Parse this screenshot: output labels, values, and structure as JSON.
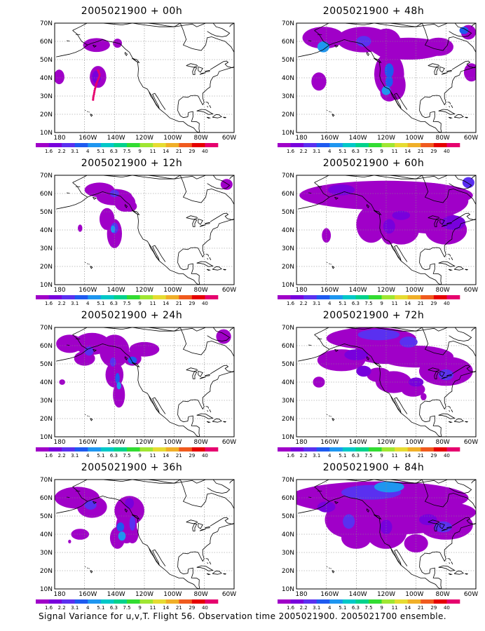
{
  "caption": "Signal Variance for u,v,T. Flight 56. Observation time 2005021900. 2005021700 ensemble.",
  "lat_labels": [
    "70N",
    "60N",
    "50N",
    "40N",
    "30N",
    "20N",
    "10N"
  ],
  "lon_labels": [
    "180",
    "160W",
    "140W",
    "120W",
    "100W",
    "80W",
    "60W"
  ],
  "colorbar": {
    "labels": [
      "1.6",
      "2.2",
      "3.1",
      "4",
      "5.1",
      "6.3",
      "7.5",
      "9",
      "11",
      "14",
      "21",
      "29",
      "40"
    ],
    "colors": [
      "#a000c8",
      "#7800dc",
      "#5a30f0",
      "#1e5af0",
      "#1e96f0",
      "#00c8c8",
      "#00d28c",
      "#32dc32",
      "#a0e632",
      "#e6dc32",
      "#f0af28",
      "#f05a1e",
      "#e60000",
      "#e6006e"
    ]
  },
  "panels": [
    {
      "title": "2005021900 + 00h"
    },
    {
      "title": "2005021900 + 48h"
    },
    {
      "title": "2005021900 + 12h"
    },
    {
      "title": "2005021900 + 60h"
    },
    {
      "title": "2005021900 + 24h"
    },
    {
      "title": "2005021900 + 72h"
    },
    {
      "title": "2005021900 + 36h"
    },
    {
      "title": "2005021900 + 84h"
    }
  ]
}
